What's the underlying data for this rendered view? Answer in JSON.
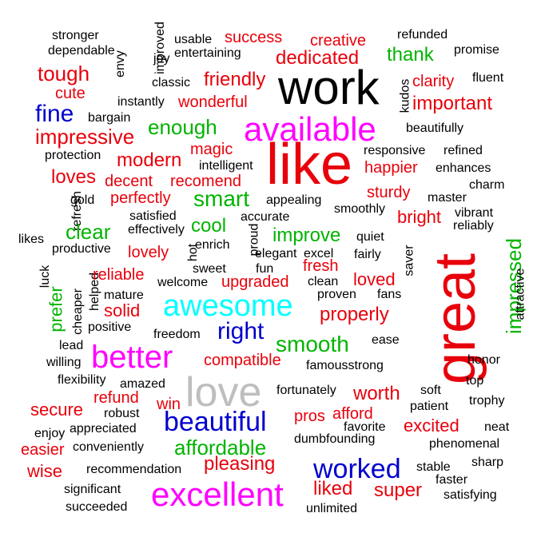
{
  "colors": {
    "black": "#000000",
    "red": "#e8000b",
    "green": "#00b400",
    "blue": "#0000cd",
    "magenta": "#ff00ff",
    "cyan": "#00ffff",
    "gray": "#bebebe"
  },
  "words": [
    {
      "text": "stronger",
      "color": "black"
    },
    {
      "text": "dependable",
      "color": "black"
    },
    {
      "text": "envy",
      "color": "black"
    },
    {
      "text": "improved",
      "color": "black"
    },
    {
      "text": "joy",
      "color": "black"
    },
    {
      "text": "usable",
      "color": "black"
    },
    {
      "text": "entertaining",
      "color": "black"
    },
    {
      "text": "success",
      "color": "red"
    },
    {
      "text": "creative",
      "color": "red"
    },
    {
      "text": "refunded",
      "color": "black"
    },
    {
      "text": "dedicated",
      "color": "red"
    },
    {
      "text": "thank",
      "color": "green"
    },
    {
      "text": "promise",
      "color": "black"
    },
    {
      "text": "tough",
      "color": "red"
    },
    {
      "text": "cute",
      "color": "red"
    },
    {
      "text": "classic",
      "color": "black"
    },
    {
      "text": "friendly",
      "color": "red"
    },
    {
      "text": "work",
      "color": "black"
    },
    {
      "text": "kudos",
      "color": "black"
    },
    {
      "text": "clarity",
      "color": "red"
    },
    {
      "text": "fluent",
      "color": "black"
    },
    {
      "text": "instantly",
      "color": "black"
    },
    {
      "text": "wonderful",
      "color": "red"
    },
    {
      "text": "important",
      "color": "red"
    },
    {
      "text": "fine",
      "color": "blue"
    },
    {
      "text": "bargain",
      "color": "black"
    },
    {
      "text": "available",
      "color": "magenta"
    },
    {
      "text": "beautifully",
      "color": "black"
    },
    {
      "text": "impressive",
      "color": "red"
    },
    {
      "text": "enough",
      "color": "green"
    },
    {
      "text": "magic",
      "color": "red"
    },
    {
      "text": "like",
      "color": "red"
    },
    {
      "text": "responsive",
      "color": "black"
    },
    {
      "text": "refined",
      "color": "black"
    },
    {
      "text": "protection",
      "color": "black"
    },
    {
      "text": "modern",
      "color": "red"
    },
    {
      "text": "intelligent",
      "color": "black"
    },
    {
      "text": "happier",
      "color": "red"
    },
    {
      "text": "enhances",
      "color": "black"
    },
    {
      "text": "loves",
      "color": "red"
    },
    {
      "text": "decent",
      "color": "red"
    },
    {
      "text": "recomend",
      "color": "red"
    },
    {
      "text": "charm",
      "color": "black"
    },
    {
      "text": "refresh",
      "color": "black"
    },
    {
      "text": "gold",
      "color": "black"
    },
    {
      "text": "perfectly",
      "color": "red"
    },
    {
      "text": "smart",
      "color": "green"
    },
    {
      "text": "appealing",
      "color": "black"
    },
    {
      "text": "sturdy",
      "color": "red"
    },
    {
      "text": "master",
      "color": "black"
    },
    {
      "text": "satisfied",
      "color": "black"
    },
    {
      "text": "accurate",
      "color": "black"
    },
    {
      "text": "smoothly",
      "color": "black"
    },
    {
      "text": "bright",
      "color": "red"
    },
    {
      "text": "vibrant",
      "color": "black"
    },
    {
      "text": "clear",
      "color": "green"
    },
    {
      "text": "effectively",
      "color": "black"
    },
    {
      "text": "cool",
      "color": "green"
    },
    {
      "text": "reliably",
      "color": "black"
    },
    {
      "text": "likes",
      "color": "black"
    },
    {
      "text": "luck",
      "color": "black"
    },
    {
      "text": "hot",
      "color": "black"
    },
    {
      "text": "enrich",
      "color": "black"
    },
    {
      "text": "proud",
      "color": "black"
    },
    {
      "text": "improve",
      "color": "green"
    },
    {
      "text": "quiet",
      "color": "black"
    },
    {
      "text": "productive",
      "color": "black"
    },
    {
      "text": "lovely",
      "color": "red"
    },
    {
      "text": "elegant",
      "color": "black"
    },
    {
      "text": "excel",
      "color": "black"
    },
    {
      "text": "fairly",
      "color": "black"
    },
    {
      "text": "saver",
      "color": "black"
    },
    {
      "text": "great",
      "color": "red"
    },
    {
      "text": "impressed",
      "color": "green"
    },
    {
      "text": "attractive",
      "color": "black"
    },
    {
      "text": "sweet",
      "color": "black"
    },
    {
      "text": "fun",
      "color": "black"
    },
    {
      "text": "fresh",
      "color": "red"
    },
    {
      "text": "prefer",
      "color": "green"
    },
    {
      "text": "cheaper",
      "color": "black"
    },
    {
      "text": "helped",
      "color": "black"
    },
    {
      "text": "reliable",
      "color": "red"
    },
    {
      "text": "welcome",
      "color": "black"
    },
    {
      "text": "upgraded",
      "color": "red"
    },
    {
      "text": "clean",
      "color": "black"
    },
    {
      "text": "loved",
      "color": "red"
    },
    {
      "text": "mature",
      "color": "black"
    },
    {
      "text": "proven",
      "color": "black"
    },
    {
      "text": "fans",
      "color": "black"
    },
    {
      "text": "solid",
      "color": "red"
    },
    {
      "text": "awesome",
      "color": "cyan"
    },
    {
      "text": "properly",
      "color": "red"
    },
    {
      "text": "positive",
      "color": "black"
    },
    {
      "text": "freedom",
      "color": "black"
    },
    {
      "text": "right",
      "color": "blue"
    },
    {
      "text": "smooth",
      "color": "green"
    },
    {
      "text": "lead",
      "color": "black"
    },
    {
      "text": "ease",
      "color": "black"
    },
    {
      "text": "better",
      "color": "magenta"
    },
    {
      "text": "willing",
      "color": "black"
    },
    {
      "text": "compatible",
      "color": "red"
    },
    {
      "text": "famousstrong",
      "color": "black"
    },
    {
      "text": "honor",
      "color": "black"
    },
    {
      "text": "flexibility",
      "color": "black"
    },
    {
      "text": "amazed",
      "color": "black"
    },
    {
      "text": "love",
      "color": "gray"
    },
    {
      "text": "top",
      "color": "black"
    },
    {
      "text": "refund",
      "color": "red"
    },
    {
      "text": "fortunately",
      "color": "black"
    },
    {
      "text": "worth",
      "color": "red"
    },
    {
      "text": "soft",
      "color": "black"
    },
    {
      "text": "trophy",
      "color": "black"
    },
    {
      "text": "secure",
      "color": "red"
    },
    {
      "text": "robust",
      "color": "black"
    },
    {
      "text": "win",
      "color": "red"
    },
    {
      "text": "patient",
      "color": "black"
    },
    {
      "text": "pros",
      "color": "red"
    },
    {
      "text": "afford",
      "color": "red"
    },
    {
      "text": "beautiful",
      "color": "blue"
    },
    {
      "text": "excited",
      "color": "red"
    },
    {
      "text": "neat",
      "color": "black"
    },
    {
      "text": "enjoy",
      "color": "black"
    },
    {
      "text": "appreciated",
      "color": "black"
    },
    {
      "text": "favorite",
      "color": "black"
    },
    {
      "text": "easier",
      "color": "red"
    },
    {
      "text": "conveniently",
      "color": "black"
    },
    {
      "text": "affordable",
      "color": "green"
    },
    {
      "text": "dumbfounding",
      "color": "black"
    },
    {
      "text": "phenomenal",
      "color": "black"
    },
    {
      "text": "wise",
      "color": "red"
    },
    {
      "text": "pleasing",
      "color": "red"
    },
    {
      "text": "recommendation",
      "color": "black"
    },
    {
      "text": "worked",
      "color": "blue"
    },
    {
      "text": "stable",
      "color": "black"
    },
    {
      "text": "sharp",
      "color": "black"
    },
    {
      "text": "significant",
      "color": "black"
    },
    {
      "text": "faster",
      "color": "black"
    },
    {
      "text": "excellent",
      "color": "magenta"
    },
    {
      "text": "liked",
      "color": "red"
    },
    {
      "text": "super",
      "color": "red"
    },
    {
      "text": "satisfying",
      "color": "black"
    },
    {
      "text": "succeeded",
      "color": "black"
    },
    {
      "text": "unlimited",
      "color": "black"
    }
  ]
}
